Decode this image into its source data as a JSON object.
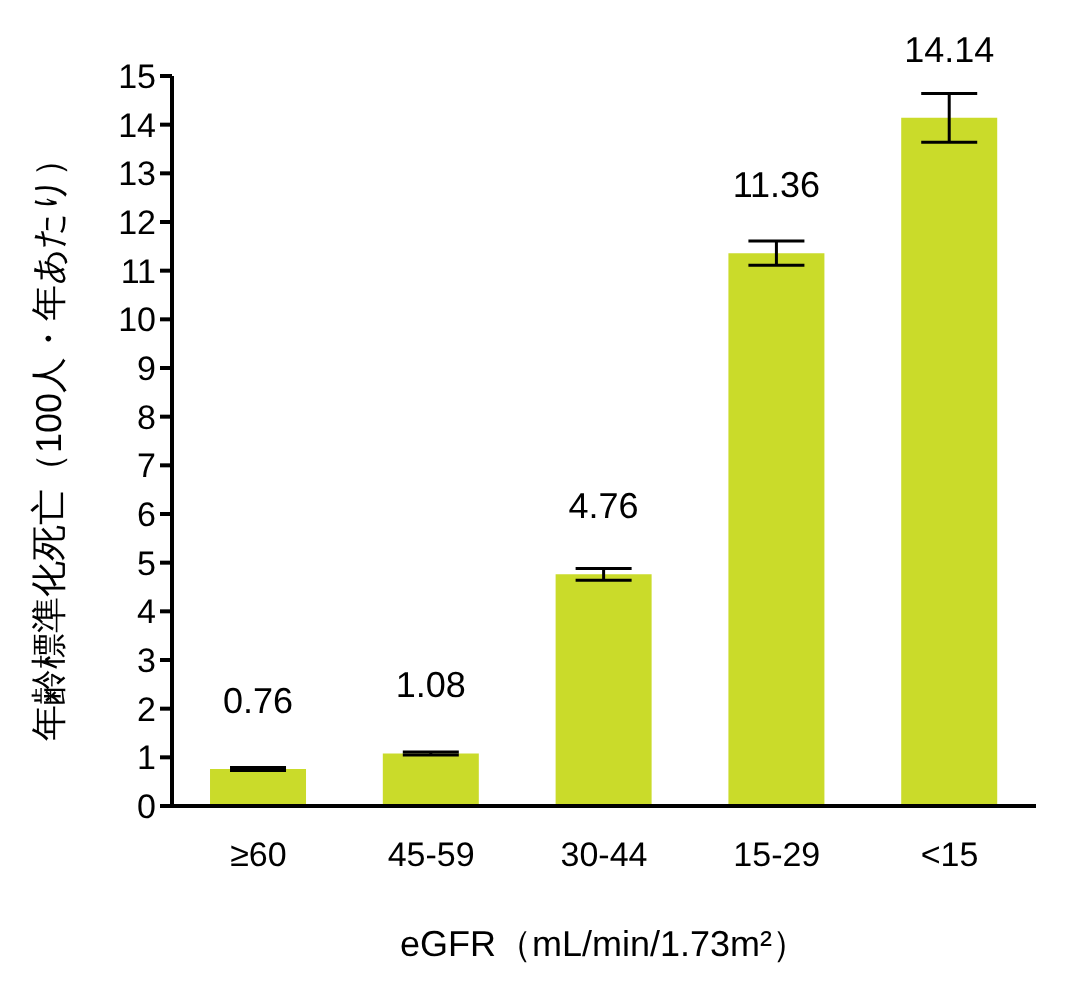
{
  "chart_data": {
    "type": "bar",
    "xlabel": "eGFR（mL/min/1.73m²）",
    "ylabel": "年齢標準化死亡（100人・年あたり）",
    "categories": [
      "≥60",
      "45-59",
      "30-44",
      "15-29",
      "<15"
    ],
    "values": [
      0.76,
      1.08,
      4.76,
      11.36,
      14.14
    ],
    "errors": [
      0.03,
      0.03,
      0.12,
      0.25,
      0.5
    ],
    "color": "#cadb2a",
    "ylim": [
      0,
      15
    ],
    "yticks": [
      0,
      1,
      2,
      3,
      4,
      5,
      6,
      7,
      8,
      9,
      10,
      11,
      12,
      13,
      14,
      15
    ],
    "data_labels": true,
    "grid": false,
    "legend": false
  }
}
